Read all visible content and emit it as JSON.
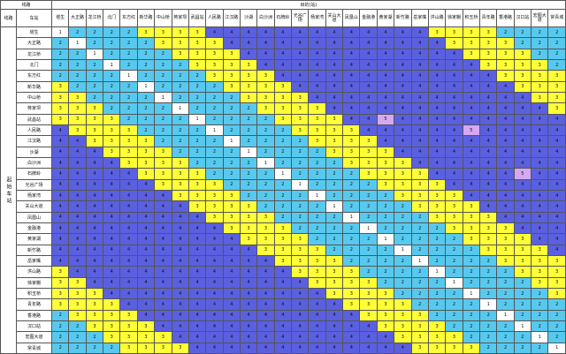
{
  "header": {
    "corner": "线路",
    "title": "目的(站)",
    "line_label": "线路",
    "station_label": "车站",
    "origin_label": "起始车站"
  },
  "stations": [
    "塔生",
    "大正路",
    "龙江桥",
    "北门",
    "东方红",
    "新华路",
    "中山桥",
    "蒋家坝",
    "武昌站",
    "人民路",
    "江汉路",
    "沙湖",
    "白沙洲",
    "石牌岭",
    "光谷广场",
    "杨家湾",
    "关山大道",
    "凤凰山",
    "金融港",
    "黄家湖",
    "新竹路",
    "岳家嘴",
    "洪山路",
    "徐家棚",
    "积玉桥",
    "青年路",
    "香港路",
    "汉口站",
    "宏图大道",
    "常青城"
  ],
  "colors": {
    "1": "#ffffff",
    "2": "#57c9ee",
    "3": "#ffff38",
    "4": "#5a60e0",
    "5": "#d6a8f2"
  },
  "rows": [
    [
      1,
      2,
      2,
      2,
      2,
      3,
      3,
      3,
      3,
      4,
      4,
      4,
      4,
      4,
      4,
      4,
      4,
      4,
      4,
      4,
      4,
      4,
      3,
      3,
      3,
      3,
      2,
      2,
      2,
      2
    ],
    [
      2,
      1,
      2,
      2,
      2,
      2,
      3,
      3,
      3,
      3,
      4,
      4,
      4,
      4,
      4,
      4,
      4,
      4,
      4,
      4,
      4,
      4,
      4,
      3,
      3,
      3,
      3,
      2,
      2,
      2
    ],
    [
      2,
      2,
      1,
      2,
      2,
      2,
      2,
      3,
      3,
      3,
      3,
      4,
      4,
      4,
      4,
      4,
      4,
      4,
      4,
      4,
      4,
      4,
      4,
      4,
      3,
      3,
      3,
      3,
      2,
      2
    ],
    [
      2,
      2,
      2,
      1,
      2,
      2,
      2,
      2,
      3,
      3,
      3,
      3,
      4,
      4,
      4,
      4,
      4,
      4,
      4,
      4,
      4,
      4,
      4,
      4,
      4,
      3,
      3,
      3,
      3,
      2
    ],
    [
      2,
      2,
      2,
      2,
      1,
      2,
      2,
      2,
      2,
      3,
      3,
      3,
      3,
      4,
      4,
      4,
      4,
      4,
      4,
      4,
      4,
      4,
      4,
      4,
      4,
      4,
      3,
      3,
      3,
      3
    ],
    [
      3,
      2,
      2,
      2,
      2,
      1,
      2,
      2,
      2,
      2,
      3,
      3,
      3,
      3,
      4,
      4,
      4,
      4,
      4,
      4,
      4,
      4,
      4,
      4,
      4,
      4,
      4,
      3,
      3,
      3
    ],
    [
      3,
      3,
      2,
      2,
      2,
      2,
      1,
      2,
      2,
      2,
      2,
      3,
      3,
      3,
      3,
      4,
      4,
      4,
      4,
      4,
      4,
      4,
      4,
      4,
      4,
      4,
      4,
      4,
      3,
      3
    ],
    [
      3,
      3,
      3,
      2,
      2,
      2,
      2,
      1,
      2,
      2,
      2,
      2,
      3,
      3,
      3,
      3,
      4,
      4,
      4,
      4,
      4,
      4,
      4,
      4,
      4,
      4,
      4,
      4,
      4,
      3
    ],
    [
      3,
      3,
      3,
      3,
      2,
      2,
      2,
      2,
      1,
      2,
      2,
      2,
      2,
      3,
      3,
      3,
      3,
      4,
      4,
      5,
      4,
      4,
      4,
      4,
      4,
      4,
      4,
      4,
      4,
      4
    ],
    [
      4,
      3,
      3,
      3,
      3,
      2,
      2,
      2,
      2,
      1,
      2,
      2,
      2,
      2,
      3,
      3,
      3,
      3,
      4,
      4,
      4,
      4,
      4,
      4,
      5,
      4,
      4,
      4,
      4,
      4
    ],
    [
      4,
      4,
      3,
      3,
      3,
      3,
      2,
      2,
      2,
      2,
      1,
      2,
      2,
      2,
      2,
      3,
      3,
      3,
      3,
      4,
      4,
      4,
      4,
      4,
      4,
      4,
      4,
      4,
      4,
      4
    ],
    [
      4,
      4,
      4,
      3,
      3,
      3,
      3,
      2,
      2,
      2,
      2,
      1,
      2,
      2,
      2,
      2,
      3,
      3,
      3,
      3,
      4,
      4,
      4,
      4,
      4,
      4,
      4,
      4,
      4,
      4
    ],
    [
      4,
      4,
      4,
      4,
      3,
      3,
      3,
      3,
      2,
      2,
      2,
      2,
      1,
      2,
      2,
      2,
      2,
      3,
      3,
      3,
      3,
      4,
      4,
      4,
      4,
      4,
      4,
      4,
      4,
      4
    ],
    [
      4,
      4,
      4,
      4,
      4,
      3,
      3,
      3,
      3,
      2,
      2,
      2,
      2,
      1,
      2,
      2,
      2,
      2,
      3,
      3,
      3,
      3,
      4,
      4,
      4,
      4,
      4,
      5,
      4,
      4
    ],
    [
      4,
      4,
      4,
      4,
      4,
      4,
      3,
      3,
      3,
      3,
      2,
      2,
      2,
      2,
      1,
      2,
      2,
      2,
      2,
      3,
      3,
      3,
      3,
      4,
      4,
      4,
      4,
      4,
      4,
      4
    ],
    [
      4,
      4,
      4,
      4,
      4,
      4,
      4,
      3,
      3,
      3,
      3,
      2,
      2,
      2,
      2,
      1,
      2,
      2,
      2,
      2,
      3,
      3,
      3,
      3,
      4,
      4,
      4,
      4,
      4,
      4
    ],
    [
      4,
      4,
      4,
      4,
      4,
      4,
      4,
      4,
      3,
      3,
      3,
      3,
      2,
      2,
      2,
      2,
      1,
      2,
      2,
      2,
      2,
      3,
      3,
      3,
      3,
      4,
      4,
      4,
      4,
      4
    ],
    [
      4,
      4,
      4,
      4,
      4,
      4,
      4,
      4,
      4,
      3,
      3,
      3,
      3,
      2,
      2,
      2,
      2,
      1,
      2,
      2,
      2,
      2,
      3,
      3,
      3,
      3,
      4,
      4,
      4,
      4
    ],
    [
      4,
      4,
      4,
      4,
      4,
      4,
      4,
      4,
      4,
      4,
      3,
      3,
      3,
      3,
      2,
      2,
      2,
      2,
      1,
      2,
      2,
      2,
      2,
      3,
      3,
      3,
      3,
      4,
      4,
      4
    ],
    [
      4,
      4,
      4,
      4,
      4,
      4,
      4,
      4,
      4,
      4,
      4,
      3,
      3,
      3,
      3,
      2,
      2,
      2,
      2,
      1,
      2,
      2,
      2,
      2,
      3,
      3,
      3,
      3,
      4,
      4
    ],
    [
      4,
      4,
      4,
      4,
      4,
      4,
      4,
      4,
      4,
      4,
      4,
      4,
      3,
      3,
      3,
      3,
      2,
      2,
      2,
      2,
      1,
      2,
      2,
      2,
      2,
      3,
      3,
      3,
      3,
      4
    ],
    [
      4,
      4,
      4,
      4,
      4,
      4,
      4,
      4,
      4,
      4,
      4,
      4,
      4,
      3,
      3,
      3,
      3,
      2,
      2,
      2,
      2,
      1,
      2,
      2,
      2,
      2,
      3,
      3,
      3,
      3
    ],
    [
      3,
      4,
      4,
      4,
      4,
      4,
      4,
      4,
      4,
      4,
      4,
      4,
      4,
      4,
      3,
      3,
      3,
      3,
      2,
      2,
      2,
      2,
      1,
      2,
      2,
      2,
      2,
      3,
      3,
      3
    ],
    [
      3,
      3,
      4,
      4,
      4,
      4,
      4,
      4,
      4,
      4,
      4,
      4,
      4,
      4,
      4,
      3,
      3,
      3,
      3,
      2,
      2,
      2,
      2,
      1,
      2,
      2,
      2,
      2,
      3,
      3
    ],
    [
      3,
      3,
      3,
      4,
      4,
      4,
      4,
      4,
      4,
      4,
      4,
      4,
      4,
      4,
      4,
      4,
      3,
      3,
      3,
      3,
      2,
      2,
      2,
      2,
      1,
      2,
      2,
      2,
      2,
      3
    ],
    [
      3,
      3,
      3,
      3,
      4,
      4,
      4,
      4,
      4,
      4,
      4,
      4,
      4,
      4,
      4,
      4,
      4,
      3,
      3,
      3,
      3,
      2,
      2,
      2,
      2,
      1,
      2,
      2,
      2,
      2
    ],
    [
      2,
      3,
      3,
      3,
      3,
      4,
      4,
      4,
      4,
      4,
      4,
      4,
      4,
      4,
      4,
      4,
      4,
      4,
      3,
      3,
      3,
      3,
      2,
      2,
      2,
      2,
      1,
      2,
      2,
      2
    ],
    [
      2,
      2,
      3,
      3,
      3,
      3,
      4,
      4,
      4,
      4,
      4,
      4,
      4,
      4,
      4,
      4,
      4,
      4,
      4,
      3,
      3,
      3,
      3,
      2,
      2,
      2,
      2,
      1,
      2,
      2
    ],
    [
      2,
      2,
      2,
      3,
      3,
      3,
      3,
      4,
      4,
      4,
      4,
      4,
      4,
      4,
      4,
      4,
      4,
      4,
      4,
      4,
      3,
      3,
      3,
      3,
      2,
      2,
      2,
      2,
      1,
      2
    ],
    [
      2,
      2,
      2,
      2,
      3,
      3,
      3,
      3,
      4,
      4,
      4,
      4,
      4,
      4,
      4,
      4,
      4,
      4,
      4,
      4,
      4,
      3,
      3,
      3,
      3,
      2,
      2,
      2,
      2,
      1
    ]
  ]
}
